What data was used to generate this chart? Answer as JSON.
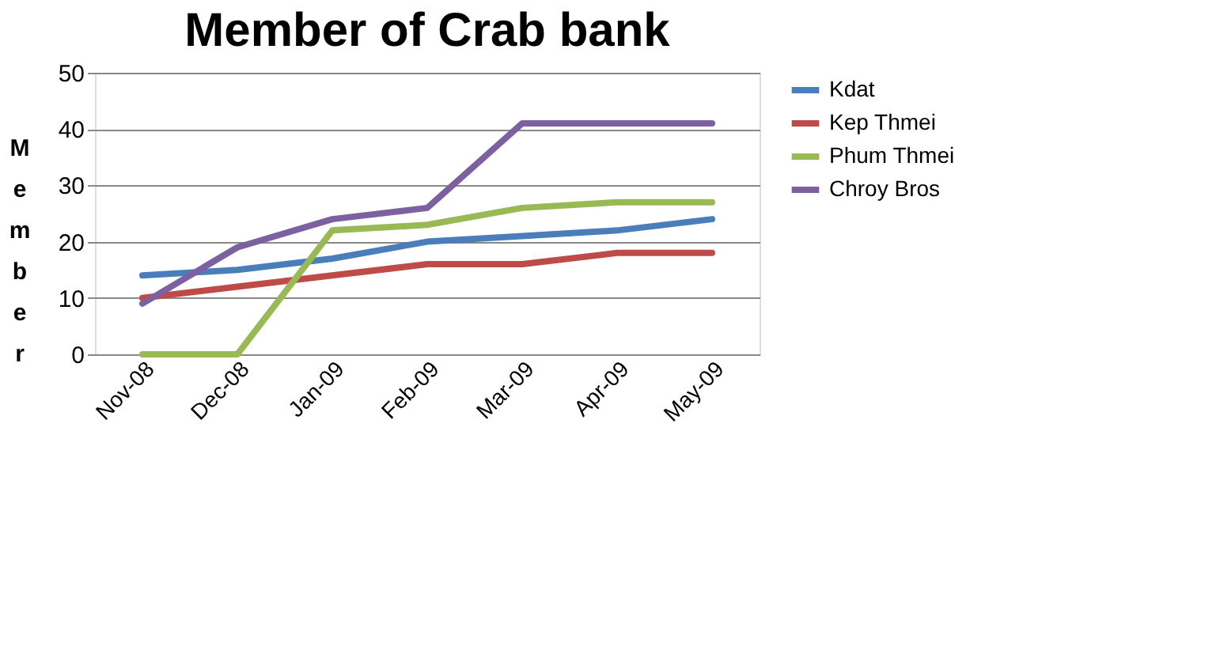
{
  "chart_data": {
    "type": "line",
    "title": "Member of Crab bank",
    "ylabel": "Member",
    "categories": [
      "Nov-08",
      "Dec-08",
      "Jan-09",
      "Feb-09",
      "Mar-09",
      "Apr-09",
      "May-09"
    ],
    "series": [
      {
        "name": "Kdat",
        "color": "#4a7ebb",
        "values": [
          14,
          15,
          17,
          20,
          21,
          22,
          24
        ]
      },
      {
        "name": "Kep Thmei",
        "color": "#be4b48",
        "values": [
          10,
          12,
          14,
          16,
          16,
          18,
          18
        ]
      },
      {
        "name": "Phum Thmei",
        "color": "#98b954",
        "values": [
          0,
          0,
          22,
          23,
          26,
          27,
          27
        ]
      },
      {
        "name": "Chroy Bros",
        "color": "#7d60a0",
        "values": [
          9,
          19,
          24,
          26,
          41,
          41,
          41
        ]
      }
    ],
    "ylim": [
      0,
      50
    ],
    "yticks": [
      0,
      10,
      20,
      30,
      40,
      50
    ],
    "grid": "y",
    "legend": "right",
    "marker": "none",
    "line_style": "solid"
  }
}
